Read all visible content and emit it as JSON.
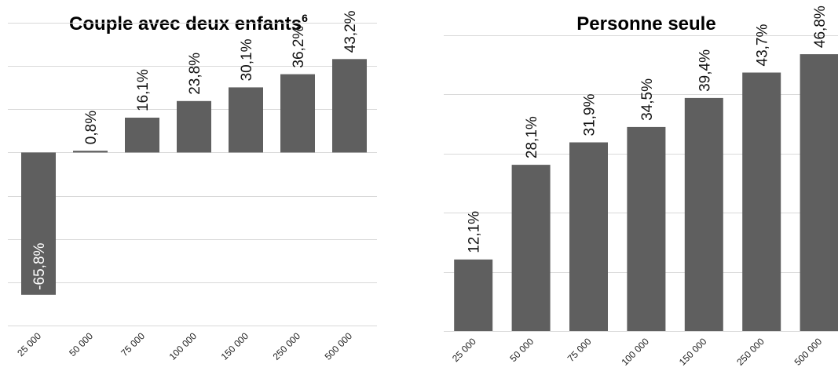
{
  "colors": {
    "bar": "#5f5f5f",
    "grid": "#d9d9d9",
    "background": "#ffffff"
  },
  "chart_data": [
    {
      "type": "bar",
      "title": "Couple avec deux enfants",
      "title_superscript": "6",
      "categories": [
        "25 000",
        "50 000",
        "75 000",
        "100 000",
        "150 000",
        "250 000",
        "500 000"
      ],
      "values": [
        -65.8,
        0.8,
        16.1,
        23.8,
        30.1,
        36.2,
        43.2
      ],
      "labels": [
        "-65,8%",
        "0,8%",
        "16,1%",
        "23,8%",
        "30,1%",
        "36,2%",
        "43,2%"
      ],
      "ylim": [
        -80,
        60
      ],
      "grid": true,
      "xlabel": "",
      "ylabel": ""
    },
    {
      "type": "bar",
      "title": "Personne seule",
      "categories": [
        "25 000",
        "50 000",
        "75 000",
        "100 000",
        "150 000",
        "250 000",
        "500 000"
      ],
      "values": [
        12.1,
        28.1,
        31.9,
        34.5,
        39.4,
        43.7,
        46.8
      ],
      "labels": [
        "12,1%",
        "28,1%",
        "31,9%",
        "34,5%",
        "39,4%",
        "43,7%",
        "46,8%"
      ],
      "ylim": [
        0,
        50
      ],
      "grid": true,
      "xlabel": "",
      "ylabel": ""
    }
  ]
}
